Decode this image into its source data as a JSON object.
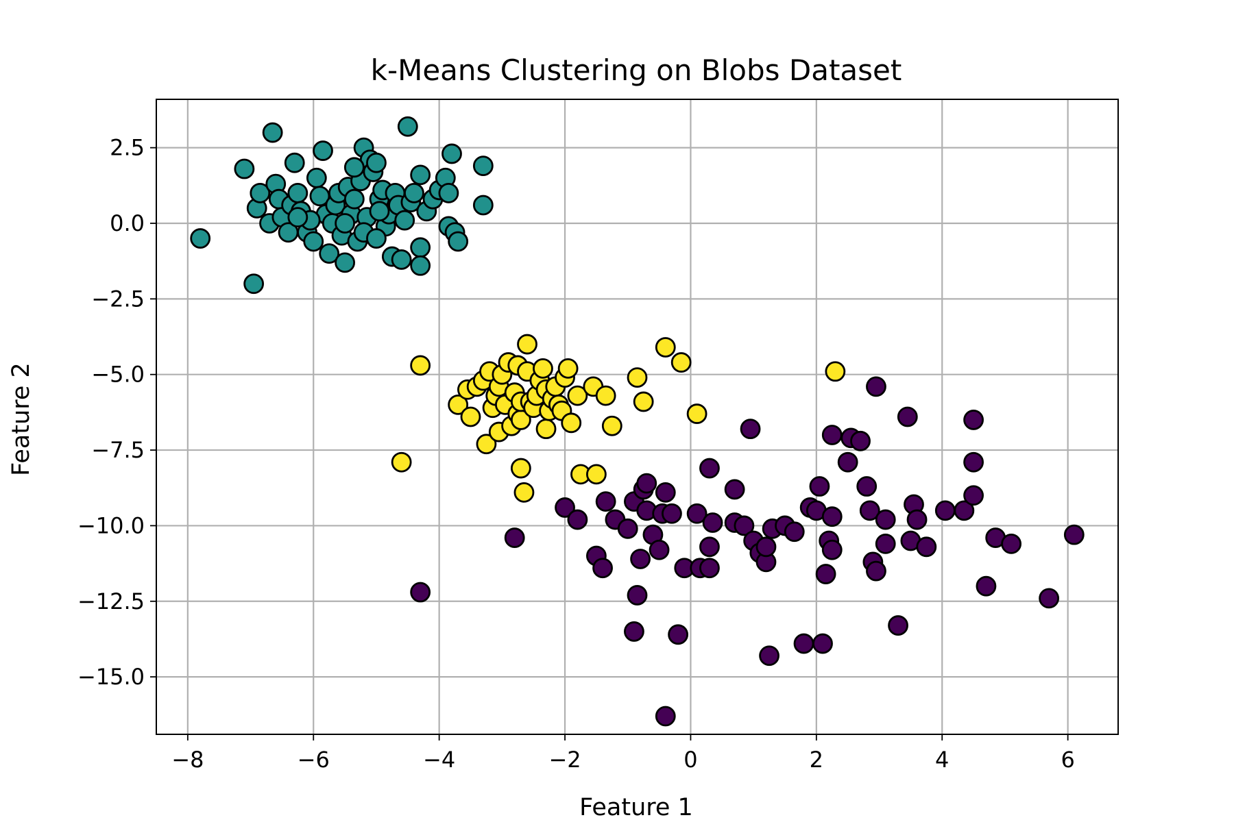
{
  "chart_data": {
    "type": "scatter",
    "title": "k-Means Clustering on Blobs Dataset",
    "xlabel": "Feature 1",
    "ylabel": "Feature 2",
    "xlim": [
      -8.5,
      6.8
    ],
    "ylim": [
      -16.9,
      4.1
    ],
    "grid": true,
    "x_ticks": [
      -8,
      -6,
      -4,
      -2,
      0,
      2,
      4,
      6
    ],
    "x_tick_labels": [
      "−8",
      "−6",
      "−4",
      "−2",
      "0",
      "2",
      "4",
      "6"
    ],
    "y_ticks": [
      2.5,
      0,
      -2.5,
      -5,
      -7.5,
      -10,
      -12.5,
      -15
    ],
    "y_tick_labels": [
      "2.5",
      "0.0",
      "−2.5",
      "−5.0",
      "−7.5",
      "−10.0",
      "−12.5",
      "−15.0"
    ],
    "colormap": "viridis",
    "marker_edge_color": "#000000",
    "series": [
      {
        "cluster": 0,
        "color": "#440154",
        "points": [
          [
            -2.8,
            -10.4
          ],
          [
            -4.3,
            -12.2
          ],
          [
            -2.0,
            -9.4
          ],
          [
            -1.8,
            -9.8
          ],
          [
            -1.5,
            -11.0
          ],
          [
            -1.4,
            -11.4
          ],
          [
            -1.35,
            -9.2
          ],
          [
            -1.2,
            -9.8
          ],
          [
            -1.0,
            -10.1
          ],
          [
            -0.9,
            -13.5
          ],
          [
            -0.85,
            -12.3
          ],
          [
            -0.8,
            -11.1
          ],
          [
            -0.9,
            -9.2
          ],
          [
            -0.75,
            -8.8
          ],
          [
            -0.7,
            -8.6
          ],
          [
            -0.7,
            -9.5
          ],
          [
            -0.6,
            -10.3
          ],
          [
            -0.5,
            -10.8
          ],
          [
            -0.45,
            -9.6
          ],
          [
            -0.4,
            -8.9
          ],
          [
            -0.4,
            -16.3
          ],
          [
            -0.3,
            -9.6
          ],
          [
            -0.2,
            -13.6
          ],
          [
            -0.1,
            -11.4
          ],
          [
            0.1,
            -9.6
          ],
          [
            0.15,
            -11.4
          ],
          [
            0.3,
            -10.7
          ],
          [
            0.3,
            -11.4
          ],
          [
            0.3,
            -8.1
          ],
          [
            0.35,
            -9.9
          ],
          [
            0.7,
            -8.8
          ],
          [
            0.7,
            -9.9
          ],
          [
            0.85,
            -10.0
          ],
          [
            0.95,
            -6.8
          ],
          [
            1.0,
            -10.5
          ],
          [
            1.1,
            -10.9
          ],
          [
            1.2,
            -11.2
          ],
          [
            1.2,
            -10.7
          ],
          [
            1.3,
            -10.1
          ],
          [
            1.25,
            -14.3
          ],
          [
            1.5,
            -10.0
          ],
          [
            1.65,
            -10.2
          ],
          [
            1.8,
            -13.9
          ],
          [
            1.9,
            -9.4
          ],
          [
            2.0,
            -9.5
          ],
          [
            2.05,
            -8.7
          ],
          [
            2.1,
            -13.9
          ],
          [
            2.15,
            -11.6
          ],
          [
            2.2,
            -10.5
          ],
          [
            2.25,
            -10.8
          ],
          [
            2.25,
            -9.7
          ],
          [
            2.25,
            -7.0
          ],
          [
            2.5,
            -7.9
          ],
          [
            2.55,
            -7.1
          ],
          [
            2.7,
            -7.2
          ],
          [
            2.8,
            -8.7
          ],
          [
            2.85,
            -9.5
          ],
          [
            2.9,
            -11.2
          ],
          [
            2.95,
            -11.5
          ],
          [
            2.95,
            -5.4
          ],
          [
            3.1,
            -9.8
          ],
          [
            3.1,
            -10.6
          ],
          [
            3.3,
            -13.3
          ],
          [
            3.45,
            -6.4
          ],
          [
            3.5,
            -10.5
          ],
          [
            3.55,
            -9.3
          ],
          [
            3.6,
            -9.8
          ],
          [
            3.75,
            -10.7
          ],
          [
            4.05,
            -9.5
          ],
          [
            4.35,
            -9.5
          ],
          [
            4.5,
            -6.5
          ],
          [
            4.5,
            -7.9
          ],
          [
            4.5,
            -9.0
          ],
          [
            4.7,
            -12.0
          ],
          [
            4.85,
            -10.4
          ],
          [
            5.1,
            -10.6
          ],
          [
            5.7,
            -12.4
          ],
          [
            6.1,
            -10.3
          ]
        ]
      },
      {
        "cluster": 1,
        "color": "#21918c",
        "points": [
          [
            -7.8,
            -0.5
          ],
          [
            -7.1,
            1.8
          ],
          [
            -6.95,
            -2.0
          ],
          [
            -6.9,
            0.5
          ],
          [
            -6.85,
            1.0
          ],
          [
            -6.7,
            0.0
          ],
          [
            -6.65,
            3.0
          ],
          [
            -6.6,
            1.3
          ],
          [
            -6.55,
            0.8
          ],
          [
            -6.5,
            0.2
          ],
          [
            -6.4,
            -0.3
          ],
          [
            -6.35,
            0.6
          ],
          [
            -6.3,
            2.0
          ],
          [
            -6.25,
            1.0
          ],
          [
            -6.2,
            0.4
          ],
          [
            -6.1,
            -0.3
          ],
          [
            -6.0,
            -0.6
          ],
          [
            -5.95,
            1.5
          ],
          [
            -5.9,
            0.9
          ],
          [
            -5.85,
            2.4
          ],
          [
            -5.8,
            0.3
          ],
          [
            -5.75,
            -1.0
          ],
          [
            -5.7,
            0.0
          ],
          [
            -5.65,
            0.6
          ],
          [
            -5.6,
            1.0
          ],
          [
            -5.55,
            -0.4
          ],
          [
            -5.5,
            -1.3
          ],
          [
            -5.45,
            1.2
          ],
          [
            -5.4,
            0.3
          ],
          [
            -5.35,
            0.8
          ],
          [
            -5.3,
            -0.6
          ],
          [
            -5.25,
            1.4
          ],
          [
            -5.2,
            2.5
          ],
          [
            -5.15,
            0.2
          ],
          [
            -5.1,
            2.1
          ],
          [
            -5.05,
            1.7
          ],
          [
            -5.0,
            2.0
          ],
          [
            -4.95,
            0.8
          ],
          [
            -4.9,
            1.1
          ],
          [
            -4.85,
            -0.1
          ],
          [
            -4.8,
            0.3
          ],
          [
            -4.75,
            -1.1
          ],
          [
            -4.7,
            1.0
          ],
          [
            -4.65,
            0.6
          ],
          [
            -4.6,
            -1.2
          ],
          [
            -4.55,
            0.1
          ],
          [
            -4.5,
            3.2
          ],
          [
            -4.45,
            0.7
          ],
          [
            -4.4,
            1.0
          ],
          [
            -4.3,
            1.6
          ],
          [
            -4.3,
            -0.8
          ],
          [
            -4.3,
            -1.4
          ],
          [
            -4.2,
            0.4
          ],
          [
            -4.1,
            0.8
          ],
          [
            -4.0,
            1.1
          ],
          [
            -3.9,
            1.5
          ],
          [
            -3.85,
            1.0
          ],
          [
            -3.85,
            -0.1
          ],
          [
            -3.8,
            2.3
          ],
          [
            -3.75,
            -0.3
          ],
          [
            -3.7,
            -0.6
          ],
          [
            -3.3,
            1.9
          ],
          [
            -3.3,
            0.6
          ],
          [
            -5.5,
            0.0
          ],
          [
            -5.2,
            -0.3
          ],
          [
            -6.05,
            0.1
          ],
          [
            -5.0,
            -0.5
          ],
          [
            -4.95,
            0.4
          ],
          [
            -5.35,
            1.85
          ],
          [
            -6.25,
            0.2
          ]
        ]
      },
      {
        "cluster": 2,
        "color": "#fde725",
        "points": [
          [
            -4.3,
            -4.7
          ],
          [
            -4.6,
            -7.9
          ],
          [
            -3.7,
            -6.0
          ],
          [
            -3.55,
            -5.5
          ],
          [
            -3.5,
            -6.4
          ],
          [
            -3.4,
            -5.4
          ],
          [
            -3.3,
            -5.2
          ],
          [
            -3.25,
            -7.3
          ],
          [
            -3.2,
            -4.9
          ],
          [
            -3.15,
            -6.1
          ],
          [
            -3.1,
            -5.7
          ],
          [
            -3.05,
            -5.4
          ],
          [
            -3.05,
            -6.9
          ],
          [
            -3.0,
            -5.0
          ],
          [
            -2.95,
            -6.0
          ],
          [
            -2.9,
            -4.6
          ],
          [
            -2.85,
            -6.7
          ],
          [
            -2.8,
            -5.6
          ],
          [
            -2.75,
            -6.3
          ],
          [
            -2.75,
            -4.7
          ],
          [
            -2.7,
            -6.5
          ],
          [
            -2.7,
            -5.9
          ],
          [
            -2.7,
            -8.1
          ],
          [
            -2.65,
            -8.9
          ],
          [
            -2.6,
            -4.0
          ],
          [
            -2.6,
            -4.9
          ],
          [
            -2.55,
            -5.9
          ],
          [
            -2.5,
            -6.1
          ],
          [
            -2.45,
            -5.7
          ],
          [
            -2.4,
            -5.2
          ],
          [
            -2.35,
            -4.8
          ],
          [
            -2.3,
            -6.8
          ],
          [
            -2.3,
            -5.5
          ],
          [
            -2.25,
            -6.2
          ],
          [
            -2.2,
            -5.8
          ],
          [
            -2.15,
            -5.4
          ],
          [
            -2.1,
            -6.0
          ],
          [
            -2.05,
            -6.2
          ],
          [
            -2.0,
            -5.1
          ],
          [
            -1.95,
            -4.8
          ],
          [
            -1.9,
            -6.6
          ],
          [
            -1.8,
            -5.7
          ],
          [
            -1.75,
            -8.3
          ],
          [
            -1.55,
            -5.4
          ],
          [
            -1.5,
            -8.3
          ],
          [
            -1.35,
            -5.7
          ],
          [
            -1.25,
            -6.7
          ],
          [
            -0.85,
            -5.1
          ],
          [
            -0.75,
            -5.9
          ],
          [
            -0.4,
            -4.1
          ],
          [
            -0.15,
            -4.6
          ],
          [
            0.1,
            -6.3
          ],
          [
            2.3,
            -4.9
          ]
        ]
      }
    ]
  }
}
